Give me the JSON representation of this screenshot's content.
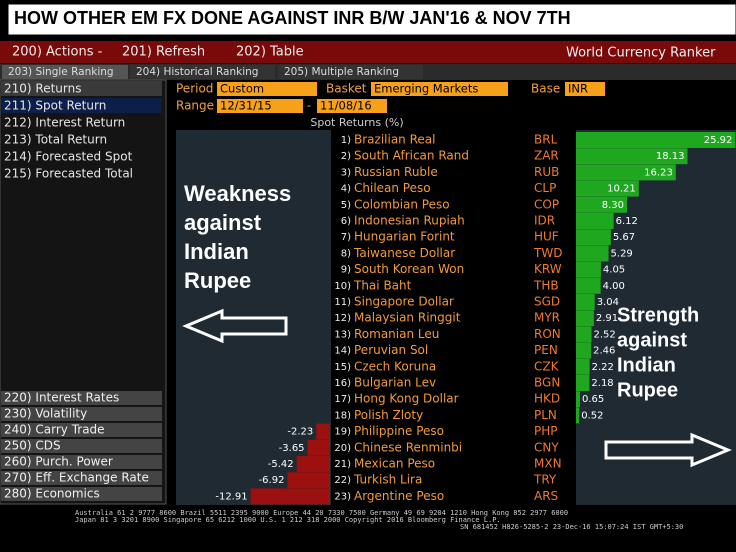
{
  "title": "HOW OTHER EM FX DONE AGAINST INR B/W JAN'16 & NOV 7TH",
  "menu": [
    "200) Actions -",
    "201) Refresh",
    "202) Table"
  ],
  "app_name": "World Currency Ranker",
  "tabs": [
    "203) Single Ranking",
    "204) Historical Ranking",
    "205) Multiple Ranking"
  ],
  "sidebar_top": [
    "210) Returns",
    "211) Spot Return",
    "212) Interest Return",
    "213) Total Return",
    "214) Forecasted Spot",
    "215) Forecasted Total"
  ],
  "sidebar_bottom": [
    "220) Interest Rates",
    "230) Volatility",
    "240) Carry Trade",
    "250) CDS",
    "260) Purch. Power",
    "270) Eff. Exchange Rate",
    "280) Economics"
  ],
  "controls": {
    "period_label": "Period",
    "period": "Custom",
    "basket_label": "Basket",
    "basket": "Emerging Markets",
    "base_label": "Base",
    "base": "INR",
    "range_label": "Range",
    "range_start": "12/31/15",
    "range_sep": "-",
    "range_end": "11/08/16"
  },
  "chart_data": {
    "type": "bar",
    "subtitle": "Spot Returns (%)",
    "ranks": [
      "1)",
      "2)",
      "3)",
      "4)",
      "5)",
      "6)",
      "7)",
      "8)",
      "9)",
      "10)",
      "11)",
      "12)",
      "13)",
      "14)",
      "15)",
      "16)",
      "17)",
      "18)",
      "19)",
      "20)",
      "21)",
      "22)",
      "23)"
    ],
    "categories": [
      "Brazilian Real",
      "South African Rand",
      "Russian Ruble",
      "Chilean Peso",
      "Colombian Peso",
      "Indonesian Rupiah",
      "Hungarian Forint",
      "Taiwanese Dollar",
      "South Korean Won",
      "Thai Baht",
      "Singapore Dollar",
      "Malaysian Ringgit",
      "Romanian Leu",
      "Peruvian Sol",
      "Czech Koruna",
      "Bulgarian Lev",
      "Hong Kong Dollar",
      "Polish Zloty",
      "Philippine Peso",
      "Chinese Renminbi",
      "Mexican Peso",
      "Turkish Lira",
      "Argentine Peso"
    ],
    "codes": [
      "BRL",
      "ZAR",
      "RUB",
      "CLP",
      "COP",
      "IDR",
      "HUF",
      "TWD",
      "KRW",
      "THB",
      "SGD",
      "MYR",
      "RON",
      "PEN",
      "CZK",
      "BGN",
      "HKD",
      "PLN",
      "PHP",
      "CNY",
      "MXN",
      "TRY",
      "ARS"
    ],
    "values": [
      25.92,
      18.13,
      16.23,
      10.21,
      8.3,
      6.12,
      5.67,
      5.29,
      4.05,
      4.0,
      3.04,
      2.91,
      2.52,
      2.46,
      2.22,
      2.18,
      0.65,
      0.52,
      -2.23,
      -3.65,
      -5.42,
      -6.92,
      -12.91
    ],
    "value_labels": [
      "25.92",
      "18.13",
      "16.23",
      "10.21",
      "8.30",
      "6.12",
      "5.67",
      "5.29",
      "4.05",
      "4.00",
      "3.04",
      "2.91",
      "2.52",
      "2.46",
      "2.22",
      "2.18",
      "0.65",
      "0.52",
      "-2.23",
      "-3.65",
      "-5.42",
      "-6.92",
      "-12.91"
    ],
    "color_positive": "#1fa81f",
    "color_negative": "#9c1010",
    "annotations": [
      [
        "Weakness",
        "against",
        "Indian",
        "Rupee"
      ],
      [
        "Strength",
        "against",
        "Indian",
        "Rupee"
      ]
    ]
  },
  "footer": [
    "Australia 61 2 9777 8600 Brazil 5511 2395 9000 Europe 44 20 7330 7500 Germany 49 69 9204 1210 Hong Kong 852 2977 6000",
    "Japan 81 3 3201 8900        Singapore 65 6212 1000        U.S. 1 212 318 2000        Copyright 2016 Bloomberg Finance L.P.",
    "SN 681452 H826-5285-2 23-Dec-16 15:07:24 IST  GMT+5:30"
  ]
}
